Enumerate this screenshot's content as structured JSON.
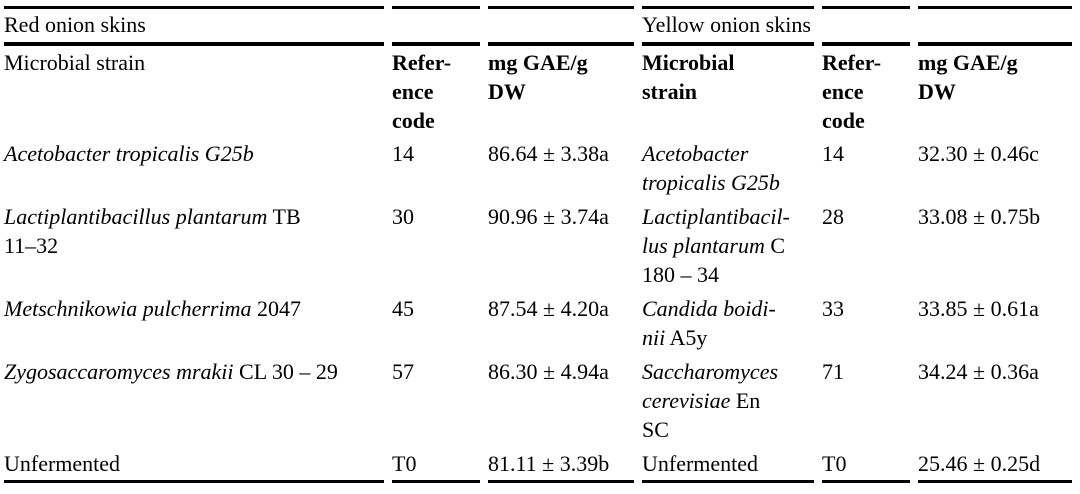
{
  "table": {
    "group_headers": [
      {
        "label": "Red onion skins"
      },
      {
        "label": "Yellow onion skins"
      }
    ],
    "column_headers": {
      "red_strain": [
        [
          {
            "t": "Microbial strain",
            "i": false
          }
        ]
      ],
      "red_code": [
        [
          {
            "t": "Refer-",
            "i": false
          }
        ],
        [
          {
            "t": "ence",
            "i": false
          }
        ],
        [
          {
            "t": "code",
            "i": false
          }
        ]
      ],
      "red_value": [
        [
          {
            "t": "mg GAE/g",
            "i": false
          }
        ],
        [
          {
            "t": "DW",
            "i": false
          }
        ]
      ],
      "yellow_strain": [
        [
          {
            "t": "Microbial",
            "i": false
          }
        ],
        [
          {
            "t": "strain",
            "i": false
          }
        ]
      ],
      "yellow_code": [
        [
          {
            "t": "Refer-",
            "i": false
          }
        ],
        [
          {
            "t": "ence",
            "i": false
          }
        ],
        [
          {
            "t": "code",
            "i": false
          }
        ]
      ],
      "yellow_value": [
        [
          {
            "t": "mg GAE/g",
            "i": false
          }
        ],
        [
          {
            "t": "DW",
            "i": false
          }
        ]
      ]
    },
    "rows": [
      {
        "red": {
          "strain": [
            [
              {
                "t": "Acetobacter tropicalis G25b",
                "i": true
              }
            ]
          ],
          "code": "14",
          "value": "86.64 ± 3.38a"
        },
        "yellow": {
          "strain": [
            [
              {
                "t": "Acetobacter",
                "i": true
              }
            ],
            [
              {
                "t": "tropicalis G25b",
                "i": true
              }
            ]
          ],
          "code": "14",
          "value": "32.30 ± 0.46c"
        }
      },
      {
        "red": {
          "strain": [
            [
              {
                "t": "Lactiplantibacillus plantarum",
                "i": true
              },
              {
                "t": " TB",
                "i": false
              }
            ],
            [
              {
                "t": "11–32",
                "i": false
              }
            ]
          ],
          "code": "30",
          "value": "90.96 ± 3.74a"
        },
        "yellow": {
          "strain": [
            [
              {
                "t": "Lactiplantibacil-",
                "i": true
              }
            ],
            [
              {
                "t": "lus plantarum",
                "i": true
              },
              {
                "t": " C",
                "i": false
              }
            ],
            [
              {
                "t": "180 – 34",
                "i": false
              }
            ]
          ],
          "code": "28",
          "value": "33.08 ± 0.75b"
        }
      },
      {
        "red": {
          "strain": [
            [
              {
                "t": "Metschnikowia pulcherrima",
                "i": true
              },
              {
                "t": " 2047",
                "i": false
              }
            ]
          ],
          "code": "45",
          "value": "87.54 ± 4.20a"
        },
        "yellow": {
          "strain": [
            [
              {
                "t": "Candida boidi-",
                "i": true
              }
            ],
            [
              {
                "t": "nii",
                "i": true
              },
              {
                "t": " A5y",
                "i": false
              }
            ]
          ],
          "code": "33",
          "value": "33.85 ± 0.61a"
        }
      },
      {
        "red": {
          "strain": [
            [
              {
                "t": "Zygosaccaromyces mrakii",
                "i": true
              },
              {
                "t": " CL 30 – 29",
                "i": false
              }
            ]
          ],
          "code": "57",
          "value": "86.30 ± 4.94a"
        },
        "yellow": {
          "strain": [
            [
              {
                "t": "Saccharomyces",
                "i": true
              }
            ],
            [
              {
                "t": "cerevisiae",
                "i": true
              },
              {
                "t": " En",
                "i": false
              }
            ],
            [
              {
                "t": "SC",
                "i": false
              }
            ]
          ],
          "code": "71",
          "value": "34.24 ± 0.36a"
        }
      },
      {
        "red": {
          "strain": [
            [
              {
                "t": "Unfermented",
                "i": false
              }
            ]
          ],
          "code": "T0",
          "value": "81.11 ± 3.39b"
        },
        "yellow": {
          "strain": [
            [
              {
                "t": "Unfermented",
                "i": false
              }
            ]
          ],
          "code": "T0",
          "value": "25.46 ± 0.25d"
        }
      }
    ]
  }
}
